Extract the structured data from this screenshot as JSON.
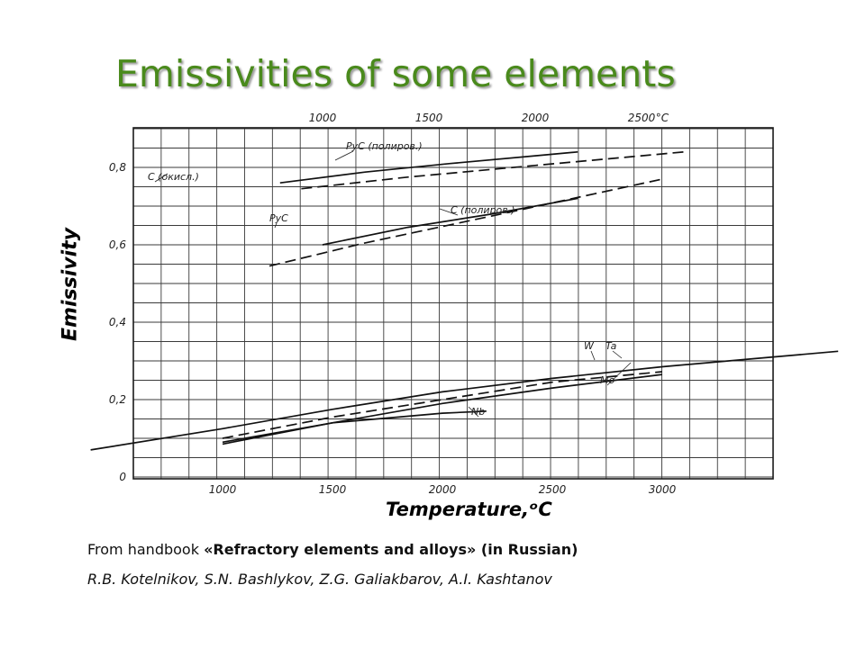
{
  "slide": {
    "title": "Emissivities of some elements",
    "source_prefix": "From handbook ",
    "source_book": "«Refractory elements and alloys» (in Russian)",
    "authors": "R.B. Kotelnikov, S.N. Bashlykov, Z.G. Galiakbarov, A.I. Kashtanov"
  },
  "chart_data": {
    "type": "line",
    "title": "",
    "xlabel": "Temperature,ᵒC",
    "ylabel": "Emissivity",
    "grid": true,
    "ylim": [
      0,
      0.93
    ],
    "yticks": [
      {
        "value": 0,
        "label": "0"
      },
      {
        "value": 0.2,
        "label": "0,2"
      },
      {
        "value": 0.4,
        "label": "0,4"
      },
      {
        "value": 0.6,
        "label": "0,6"
      },
      {
        "value": 0.8,
        "label": "0,8"
      }
    ],
    "x_top": {
      "unit_label": "°C",
      "lim": [
        660,
        3000
      ],
      "ticks": [
        {
          "value": 1000,
          "label": "1000"
        },
        {
          "value": 1500,
          "label": "1500"
        },
        {
          "value": 2000,
          "label": "2000"
        },
        {
          "value": 2500,
          "label": "2500"
        }
      ]
    },
    "x_bottom": {
      "lim": [
        400,
        3800
      ],
      "ticks": [
        {
          "value": 1000,
          "label": "1000"
        },
        {
          "value": 1500,
          "label": "1500"
        },
        {
          "value": 2000,
          "label": "2000"
        },
        {
          "value": 2500,
          "label": "2500"
        },
        {
          "value": 3000,
          "label": "3000"
        }
      ]
    },
    "series": [
      {
        "name": "PyC (полиров.)",
        "axis": "top",
        "dash": false,
        "x": [
          800,
          1200,
          1600,
          2000,
          2200
        ],
        "y": [
          0.76,
          0.788,
          0.81,
          0.83,
          0.84
        ]
      },
      {
        "name": "C (окисл.)",
        "axis": "top",
        "dash": true,
        "x": [
          900,
          1400,
          2000,
          2500,
          2700
        ],
        "y": [
          0.745,
          0.775,
          0.805,
          0.83,
          0.84
        ]
      },
      {
        "name": "PyC",
        "axis": "top",
        "dash": false,
        "x": [
          1000,
          1400,
          1800,
          2200
        ],
        "y": [
          0.6,
          0.645,
          0.68,
          0.72
        ]
      },
      {
        "name": "C (полиров.)",
        "axis": "top",
        "dash": true,
        "x": [
          750,
          1200,
          1800,
          2600
        ],
        "y": [
          0.545,
          0.605,
          0.675,
          0.77
        ]
      },
      {
        "name": "W",
        "axis": "bottom",
        "dash": false,
        "x": [
          400,
          1000,
          1500,
          2000,
          2500,
          3000,
          3400,
          3800
        ],
        "y": [
          0.07,
          0.125,
          0.175,
          0.22,
          0.255,
          0.285,
          0.305,
          0.325
        ]
      },
      {
        "name": "Ta",
        "axis": "bottom",
        "dash": true,
        "x": [
          1000,
          1500,
          2000,
          2500,
          3000
        ],
        "y": [
          0.1,
          0.155,
          0.2,
          0.245,
          0.272
        ]
      },
      {
        "name": "Mo",
        "axis": "bottom",
        "dash": false,
        "x": [
          1000,
          1500,
          2000,
          2500,
          3000
        ],
        "y": [
          0.085,
          0.14,
          0.19,
          0.23,
          0.265
        ]
      },
      {
        "name": "Nb",
        "axis": "bottom",
        "dash": false,
        "x": [
          1000,
          1500,
          2000,
          2200
        ],
        "y": [
          0.09,
          0.14,
          0.165,
          0.17
        ]
      }
    ]
  }
}
